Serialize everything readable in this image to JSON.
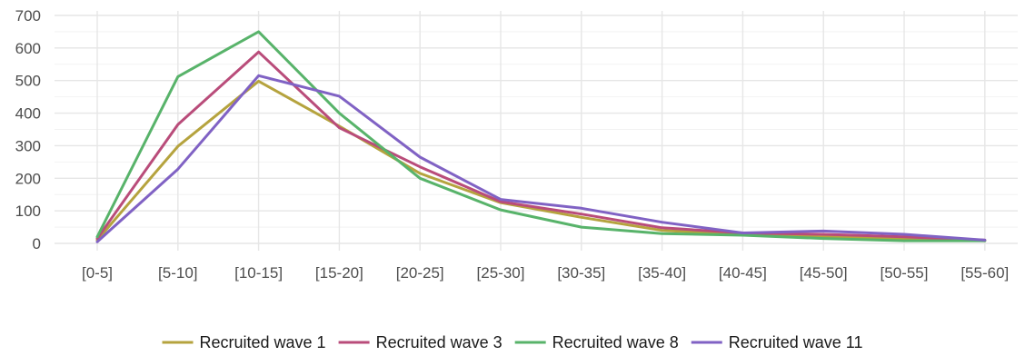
{
  "chart_data": {
    "type": "line",
    "title": "",
    "xlabel": "",
    "ylabel": "",
    "categories": [
      "[0-5]",
      "[5-10]",
      "[10-15]",
      "[15-20]",
      "[20-25]",
      "[25-30]",
      "[30-35]",
      "[35-40]",
      "[40-45]",
      "[45-50]",
      "[50-55]",
      "[55-60]"
    ],
    "ylim": [
      0,
      700
    ],
    "yticks": [
      0,
      100,
      200,
      300,
      400,
      500,
      600,
      700
    ],
    "grid": true,
    "legend_position": "bottom",
    "series": [
      {
        "name": "Recruited wave 1",
        "color": "#B5A33E",
        "values": [
          10,
          298,
          498,
          360,
          215,
          125,
          80,
          40,
          28,
          20,
          15,
          8
        ]
      },
      {
        "name": "Recruited wave 3",
        "color": "#B94C7A",
        "values": [
          15,
          365,
          588,
          355,
          235,
          128,
          90,
          48,
          32,
          28,
          20,
          10
        ]
      },
      {
        "name": "Recruited wave 8",
        "color": "#58B36A",
        "values": [
          20,
          512,
          650,
          400,
          200,
          103,
          50,
          30,
          25,
          15,
          8,
          8
        ]
      },
      {
        "name": "Recruited wave 11",
        "color": "#8062C4",
        "values": [
          5,
          228,
          515,
          452,
          265,
          135,
          108,
          65,
          32,
          38,
          28,
          10
        ]
      }
    ]
  }
}
